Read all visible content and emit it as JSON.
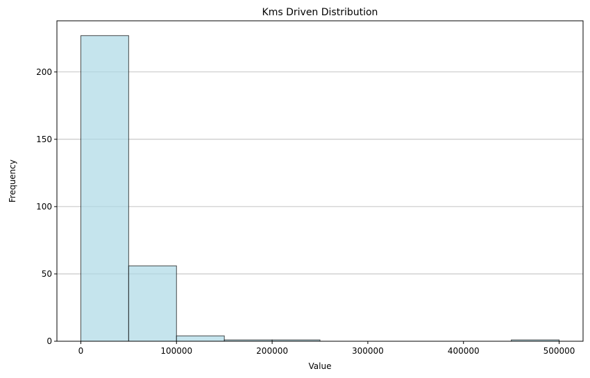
{
  "chart_data": {
    "type": "bar",
    "title": "Kms Driven Distribution",
    "xlabel": "Value",
    "ylabel": "Frequency",
    "bin_edges": [
      0,
      50000,
      100000,
      150000,
      200000,
      250000,
      300000,
      350000,
      400000,
      450000,
      500000
    ],
    "values": [
      227,
      56,
      4,
      1,
      1,
      0,
      0,
      0,
      0,
      1
    ],
    "xlim": [
      -25000,
      525000
    ],
    "ylim": [
      0,
      238
    ],
    "xticks": [
      0,
      100000,
      200000,
      300000,
      400000,
      500000
    ],
    "xtick_labels": [
      "0",
      "100000",
      "200000",
      "300000",
      "400000",
      "500000"
    ],
    "yticks": [
      0,
      50,
      100,
      150,
      200
    ],
    "ytick_labels": [
      "0",
      "50",
      "100",
      "150",
      "200"
    ],
    "grid": "y",
    "colors": {
      "bar_fill": "#add8e6",
      "bar_edge": "#000000",
      "grid": "#b0b0b0"
    }
  }
}
